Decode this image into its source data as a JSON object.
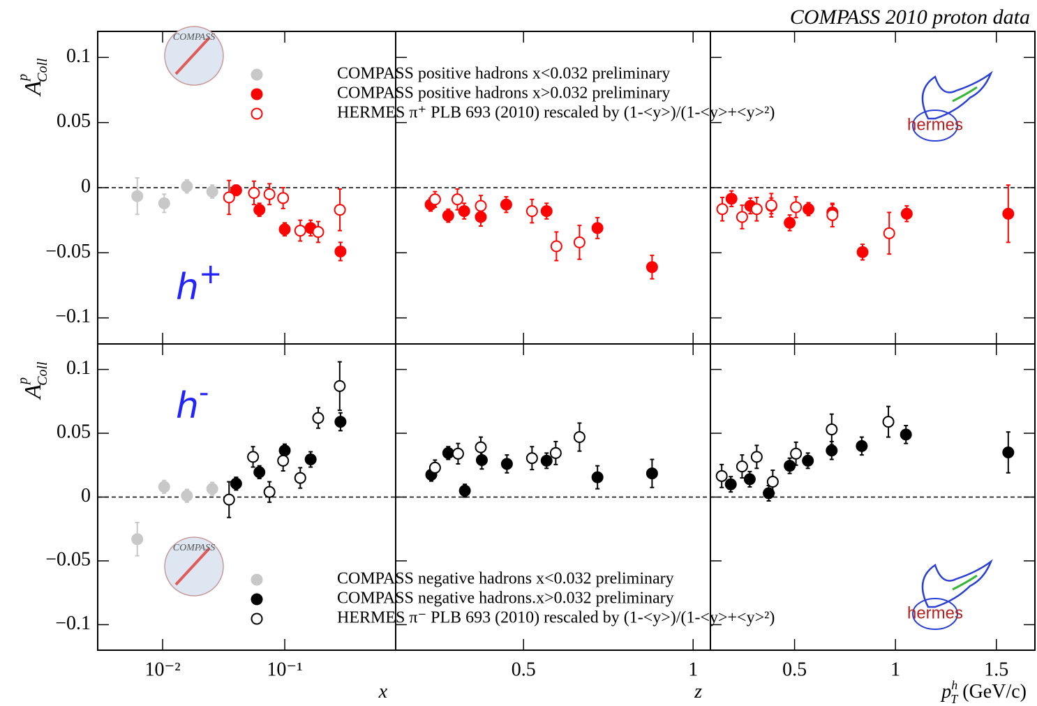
{
  "title": "COMPASS 2010 proton data",
  "chart_data": [
    {
      "type": "scatter",
      "xscale": "log",
      "xlim": [
        0.00294,
        0.81
      ],
      "ylim": [
        -0.12,
        0.12
      ],
      "refline": 0,
      "ylabel": {
        "main": "A",
        "sup": "p",
        "sub": "Coll"
      },
      "label": {
        "text": "h",
        "sup": "+"
      },
      "compass_logo": "COMPASS",
      "hermes_logo": "hermes",
      "yticks": [
        {
          "value": 0.1,
          "label": "0.1"
        },
        {
          "value": 0.05,
          "label": "0.05"
        },
        0,
        {
          "value": -0.05,
          "label": "−0.05"
        },
        {
          "value": -0.1,
          "label": "−0.1"
        }
      ],
      "series": [
        {
          "name": "COMPASS positive hadrons  x<0.032 preliminary",
          "color": "#c8c8c8",
          "marker": "filled",
          "x": [
            0.0062,
            0.0103,
            0.0158,
            0.0255
          ],
          "values": [
            -0.0065,
            -0.012,
            0.001,
            -0.003
          ],
          "errors": [
            0.014,
            0.007,
            0.005,
            0.005
          ]
        },
        {
          "name": "COMPASS positive hadrons  x>0.032 preliminary",
          "color": "#ff0000",
          "marker": "filled",
          "x": [
            0.04,
            0.062,
            0.1,
            0.163,
            0.286
          ],
          "values": [
            -0.002,
            -0.017,
            -0.032,
            -0.031,
            -0.049
          ],
          "errors": [
            0.004,
            0.005,
            0.005,
            0.006,
            0.007
          ]
        },
        {
          "name": "HERMES π⁺  PLB 693 (2010) rescaled by (1-<y>)/(1-<y>+<y>²)",
          "color": "#ff0000",
          "marker": "open",
          "x": [
            0.035,
            0.056,
            0.075,
            0.097,
            0.134,
            0.188,
            0.283
          ],
          "values": [
            -0.0075,
            -0.004,
            -0.005,
            -0.008,
            -0.033,
            -0.034,
            -0.017
          ],
          "errors": [
            0.013,
            0.009,
            0.008,
            0.008,
            0.008,
            0.008,
            0.016
          ]
        }
      ]
    },
    {
      "type": "scatter",
      "xlim": [
        0.123,
        1.051
      ],
      "ylim": [
        -0.12,
        0.12
      ],
      "refline": 0,
      "series": [
        {
          "color": "#ff0000",
          "marker": "filled",
          "x": [
            0.226,
            0.278,
            0.325,
            0.374,
            0.449,
            0.568,
            0.718,
            0.879
          ],
          "values": [
            -0.013,
            -0.0215,
            -0.018,
            -0.0225,
            -0.013,
            -0.018,
            -0.031,
            -0.061
          ],
          "errors": [
            0.005,
            0.005,
            0.006,
            0.007,
            0.006,
            0.006,
            0.008,
            0.009
          ]
        },
        {
          "color": "#ff0000",
          "marker": "open",
          "x": [
            0.239,
            0.305,
            0.374,
            0.525,
            0.597,
            0.665
          ],
          "values": [
            -0.009,
            -0.009,
            -0.014,
            -0.018,
            -0.045,
            -0.042
          ],
          "errors": [
            0.006,
            0.008,
            0.008,
            0.009,
            0.011,
            0.013
          ]
        }
      ]
    },
    {
      "type": "scatter",
      "xlim": [
        0.083,
        1.691
      ],
      "ylim": [
        -0.12,
        0.12
      ],
      "refline": 0,
      "series": [
        {
          "color": "#ff0000",
          "marker": "filled",
          "x": [
            0.1875,
            0.281,
            0.385,
            0.476,
            0.569,
            0.6875,
            0.837,
            1.056,
            1.559
          ],
          "values": [
            -0.0085,
            -0.014,
            -0.014,
            -0.027,
            -0.0165,
            -0.019,
            -0.0495,
            -0.02,
            -0.02
          ],
          "errors": [
            0.006,
            0.006,
            0.006,
            0.006,
            0.005,
            0.006,
            0.006,
            0.006,
            0.022
          ]
        },
        {
          "color": "#ff0000",
          "marker": "open",
          "x": [
            0.142,
            0.24,
            0.3125,
            0.385,
            0.507,
            0.6875,
            0.969
          ],
          "values": [
            -0.0165,
            -0.0225,
            -0.0165,
            -0.0135,
            -0.015,
            -0.021,
            -0.035
          ],
          "errors": [
            0.009,
            0.009,
            0.009,
            0.009,
            0.008,
            0.009,
            0.016
          ]
        }
      ]
    },
    {
      "type": "scatter",
      "xscale": "log",
      "xlim": [
        0.00294,
        0.81
      ],
      "ylim": [
        -0.12,
        0.12
      ],
      "refline": 0,
      "ylabel": {
        "main": "A",
        "sup": "p",
        "sub": "Coll"
      },
      "label": {
        "text": "h",
        "sup": "-"
      },
      "compass_logo": "COMPASS",
      "hermes_logo": "hermes",
      "xlabel": {
        "main": "x"
      },
      "xticks": [
        {
          "value": 0.01,
          "label": "10⁻²"
        },
        {
          "value": 0.1,
          "label": "10⁻¹"
        }
      ],
      "yticks": [
        {
          "value": 0.1,
          "label": "0.1"
        },
        {
          "value": 0.05,
          "label": "0.05"
        },
        0,
        {
          "value": -0.05,
          "label": "−0.05"
        },
        {
          "value": -0.1,
          "label": "−0.1"
        }
      ],
      "series": [
        {
          "name": "COMPASS negative hadrons  x<0.032 preliminary",
          "color": "#c8c8c8",
          "marker": "filled",
          "x": [
            0.0062,
            0.0103,
            0.0158,
            0.0255
          ],
          "values": [
            -0.033,
            0.008,
            0.001,
            0.0065
          ],
          "errors": [
            0.013,
            0.005,
            0.005,
            0.005
          ]
        },
        {
          "name": "COMPASS negative  hadrons.x>0.032 preliminary",
          "color": "#000000",
          "marker": "filled",
          "x": [
            0.04,
            0.062,
            0.1,
            0.163,
            0.286
          ],
          "values": [
            0.0105,
            0.0195,
            0.0365,
            0.0295,
            0.059
          ],
          "errors": [
            0.005,
            0.005,
            0.005,
            0.006,
            0.007
          ]
        },
        {
          "name": "HERMES π⁻  PLB 693 (2010) rescaled by (1-<y>)/(1-<y>+<y>²)",
          "color": "#000000",
          "marker": "open",
          "x": [
            0.035,
            0.055,
            0.075,
            0.097,
            0.134,
            0.188,
            0.282
          ],
          "values": [
            -0.002,
            0.0315,
            0.004,
            0.0285,
            0.015,
            0.062,
            0.087
          ],
          "errors": [
            0.014,
            0.008,
            0.008,
            0.008,
            0.008,
            0.008,
            0.019
          ]
        }
      ]
    },
    {
      "type": "scatter",
      "xlim": [
        0.123,
        1.051
      ],
      "ylim": [
        -0.12,
        0.12
      ],
      "refline": 0,
      "xlabel": {
        "main": "z"
      },
      "xticks": [
        0.5,
        1
      ],
      "series": [
        {
          "color": "#000000",
          "marker": "filled",
          "x": [
            0.228,
            0.278,
            0.327,
            0.377,
            0.451,
            0.568,
            0.718,
            0.879
          ],
          "values": [
            0.0175,
            0.0345,
            0.005,
            0.029,
            0.026,
            0.0285,
            0.0155,
            0.0185
          ],
          "errors": [
            0.005,
            0.005,
            0.005,
            0.007,
            0.007,
            0.006,
            0.009,
            0.011
          ]
        },
        {
          "color": "#000000",
          "marker": "open",
          "x": [
            0.239,
            0.307,
            0.374,
            0.525,
            0.595,
            0.665
          ],
          "values": [
            0.023,
            0.034,
            0.039,
            0.0305,
            0.0345,
            0.047
          ],
          "errors": [
            0.006,
            0.008,
            0.008,
            0.009,
            0.009,
            0.011
          ]
        }
      ]
    },
    {
      "type": "scatter",
      "xlim": [
        0.083,
        1.691
      ],
      "ylim": [
        -0.12,
        0.12
      ],
      "refline": 0,
      "xlabel": {
        "main": "p",
        "sup": "h",
        "sub": "T",
        "unit": " (GeV/c)"
      },
      "xticks": [
        0.5,
        1,
        1.5
      ],
      "series": [
        {
          "color": "#000000",
          "marker": "filled",
          "x": [
            0.184,
            0.278,
            0.372,
            0.476,
            0.566,
            0.684,
            0.833,
            1.052,
            1.559
          ],
          "values": [
            0.01,
            0.014,
            0.003,
            0.0245,
            0.0285,
            0.0365,
            0.04,
            0.049,
            0.035
          ],
          "errors": [
            0.006,
            0.006,
            0.006,
            0.006,
            0.006,
            0.007,
            0.007,
            0.007,
            0.016
          ]
        },
        {
          "color": "#000000",
          "marker": "open",
          "x": [
            0.139,
            0.24,
            0.3125,
            0.392,
            0.507,
            0.684,
            0.965
          ],
          "values": [
            0.0165,
            0.024,
            0.0315,
            0.012,
            0.034,
            0.053,
            0.059
          ],
          "errors": [
            0.009,
            0.009,
            0.009,
            0.009,
            0.009,
            0.012,
            0.012
          ]
        }
      ]
    }
  ]
}
